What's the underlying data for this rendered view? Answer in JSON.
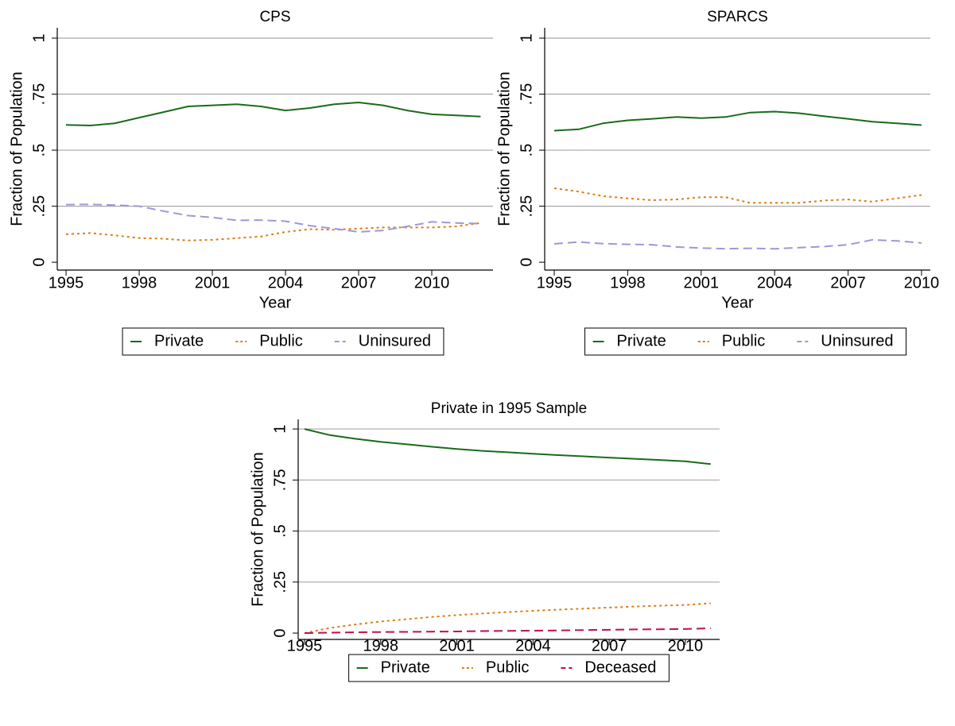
{
  "chart_data": [
    {
      "type": "line",
      "title": "CPS",
      "xlabel": "Year",
      "ylabel": "Fraction of Population",
      "x": [
        1995,
        1996,
        1997,
        1998,
        1999,
        2000,
        2001,
        2002,
        2003,
        2004,
        2005,
        2006,
        2007,
        2008,
        2009,
        2010,
        2011,
        2012
      ],
      "series": [
        {
          "name": "Private",
          "color": "#1a6b1a",
          "values": [
            0.613,
            0.61,
            0.62,
            0.645,
            0.67,
            0.695,
            0.7,
            0.705,
            0.695,
            0.677,
            0.688,
            0.705,
            0.713,
            0.7,
            0.677,
            0.66,
            0.655,
            0.65
          ]
        },
        {
          "name": "Public",
          "color": "#e07b10",
          "values": [
            0.125,
            0.13,
            0.12,
            0.108,
            0.105,
            0.097,
            0.1,
            0.107,
            0.115,
            0.135,
            0.147,
            0.145,
            0.15,
            0.155,
            0.155,
            0.155,
            0.16,
            0.175
          ]
        },
        {
          "name": "Uninsured",
          "color": "#9a9ad8",
          "values": [
            0.257,
            0.258,
            0.255,
            0.25,
            0.228,
            0.208,
            0.2,
            0.187,
            0.188,
            0.183,
            0.163,
            0.15,
            0.135,
            0.142,
            0.16,
            0.18,
            0.175,
            0.172
          ]
        }
      ],
      "xlim": [
        1994.64,
        2012.51
      ],
      "ylim": [
        -0.035,
        1.046
      ],
      "xticks": [
        1995,
        1998,
        2001,
        2004,
        2007,
        2010
      ],
      "yticks": [
        0,
        {
          "value": 0.25,
          "label": ".25"
        },
        {
          "value": 0.5,
          "label": ".5"
        },
        {
          "value": 0.75,
          "label": ".75"
        },
        1
      ],
      "grid": true,
      "legend": "bottom"
    },
    {
      "type": "line",
      "title": "SPARCS",
      "xlabel": "Year",
      "ylabel": "Fraction of Population",
      "x": [
        1995,
        1996,
        1997,
        1998,
        1999,
        2000,
        2001,
        2002,
        2003,
        2004,
        2005,
        2006,
        2007,
        2008,
        2009,
        2010
      ],
      "series": [
        {
          "name": "Private",
          "color": "#1a6b1a",
          "values": [
            0.587,
            0.593,
            0.62,
            0.633,
            0.64,
            0.648,
            0.643,
            0.648,
            0.668,
            0.672,
            0.665,
            0.652,
            0.64,
            0.627,
            0.62,
            0.612
          ]
        },
        {
          "name": "Public",
          "color": "#e07b10",
          "values": [
            0.33,
            0.315,
            0.295,
            0.285,
            0.277,
            0.28,
            0.29,
            0.29,
            0.265,
            0.265,
            0.265,
            0.275,
            0.28,
            0.27,
            0.285,
            0.3
          ]
        },
        {
          "name": "Uninsured",
          "color": "#9a9ad8",
          "values": [
            0.082,
            0.09,
            0.083,
            0.08,
            0.078,
            0.068,
            0.063,
            0.06,
            0.062,
            0.06,
            0.065,
            0.07,
            0.078,
            0.1,
            0.095,
            0.086
          ]
        }
      ],
      "xlim": [
        1994.61,
        2010.36
      ],
      "ylim": [
        -0.035,
        1.046
      ],
      "xticks": [
        1995,
        1998,
        2001,
        2004,
        2007,
        2010
      ],
      "yticks": [
        0,
        {
          "value": 0.25,
          "label": ".25"
        },
        {
          "value": 0.5,
          "label": ".5"
        },
        {
          "value": 0.75,
          "label": ".75"
        },
        1
      ],
      "grid": true,
      "legend": "bottom"
    },
    {
      "type": "line",
      "title": "Private in 1995 Sample",
      "xlabel": "Year",
      "ylabel": "Fraction of Population",
      "x": [
        1995,
        1996,
        1997,
        1998,
        1999,
        2000,
        2001,
        2002,
        2003,
        2004,
        2005,
        2006,
        2007,
        2008,
        2009,
        2010,
        2011
      ],
      "series": [
        {
          "name": "Private",
          "color": "#1a6b1a",
          "values": [
            1.0,
            0.97,
            0.952,
            0.937,
            0.925,
            0.913,
            0.902,
            0.893,
            0.886,
            0.879,
            0.872,
            0.866,
            0.86,
            0.854,
            0.848,
            0.842,
            0.828
          ]
        },
        {
          "name": "Public",
          "color": "#e07b10",
          "values": [
            0,
            0.025,
            0.042,
            0.057,
            0.068,
            0.079,
            0.088,
            0.096,
            0.103,
            0.109,
            0.115,
            0.12,
            0.125,
            0.13,
            0.134,
            0.138,
            0.146
          ]
        },
        {
          "name": "Deceased",
          "color": "#c0104c",
          "values": [
            0,
            0.002,
            0.004,
            0.005,
            0.006,
            0.007,
            0.008,
            0.01,
            0.011,
            0.012,
            0.013,
            0.015,
            0.016,
            0.018,
            0.019,
            0.02,
            0.024
          ]
        }
      ],
      "xlim": [
        1994.75,
        2011.35
      ],
      "ylim": [
        -0.031,
        1.047
      ],
      "xticks": [
        1995,
        1998,
        2001,
        2004,
        2007,
        2010
      ],
      "yticks": [
        0,
        {
          "value": 0.25,
          "label": ".25"
        },
        {
          "value": 0.5,
          "label": ".5"
        },
        {
          "value": 0.75,
          "label": ".75"
        },
        1
      ],
      "grid": true,
      "legend": "bottom"
    }
  ]
}
